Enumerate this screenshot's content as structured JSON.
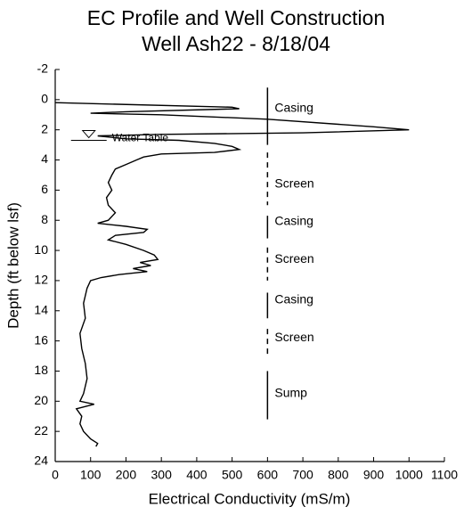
{
  "chart_data": {
    "type": "profile",
    "title": "EC Profile and Well Construction",
    "subtitle": "Well Ash22 - 8/18/04",
    "x_label": "Electrical Conductivity (mS/m)",
    "y_label": "Depth (ft below lsf)",
    "xlim": [
      0,
      1100
    ],
    "xticks": [
      0,
      100,
      200,
      300,
      400,
      500,
      600,
      700,
      800,
      900,
      1000,
      1100
    ],
    "ylim": [
      -2,
      24
    ],
    "yticks": [
      -2,
      0,
      2,
      4,
      6,
      8,
      10,
      12,
      14,
      16,
      18,
      20,
      22,
      24
    ],
    "y_inverted": true,
    "color": "#000000",
    "x": [
      0,
      500,
      520,
      200,
      100,
      300,
      600,
      900,
      1000,
      700,
      300,
      120,
      200,
      350,
      450,
      500,
      520,
      450,
      300,
      250,
      230,
      200,
      170,
      160,
      150,
      160,
      145,
      150,
      170,
      150,
      120,
      200,
      260,
      250,
      170,
      150,
      200,
      250,
      280,
      290,
      240,
      270,
      220,
      260,
      180,
      130,
      100,
      90,
      80,
      85,
      70,
      75,
      85,
      90,
      80,
      70,
      110,
      60,
      75,
      70,
      80,
      100,
      120,
      115
    ],
    "values": [
      0.2,
      0.5,
      0.6,
      0.8,
      0.9,
      1.0,
      1.3,
      1.8,
      2.0,
      2.2,
      2.3,
      2.4,
      2.6,
      2.7,
      2.9,
      3.1,
      3.3,
      3.5,
      3.6,
      3.8,
      4.0,
      4.3,
      4.6,
      5.0,
      5.5,
      6.0,
      6.5,
      7.0,
      7.5,
      8.0,
      8.2,
      8.4,
      8.6,
      8.8,
      9.0,
      9.3,
      9.6,
      10.0,
      10.3,
      10.6,
      10.8,
      11.0,
      11.2,
      11.4,
      11.6,
      11.8,
      12.0,
      12.5,
      13.5,
      14.5,
      15.5,
      16.5,
      17.5,
      18.5,
      19.5,
      20.0,
      20.2,
      20.5,
      21.0,
      21.5,
      22.0,
      22.5,
      22.8,
      23.0
    ],
    "well_x": 600,
    "well": [
      {
        "label": "Casing",
        "top": -0.8,
        "bottom": 3.0,
        "label_y": 0.6,
        "style": "solid"
      },
      {
        "label": "Screen",
        "top": 3.5,
        "bottom": 7.0,
        "label_y": 5.6,
        "style": "dashed"
      },
      {
        "label": "Casing",
        "top": 7.7,
        "bottom": 9.2,
        "label_y": 8.1,
        "style": "solid"
      },
      {
        "label": "Screen",
        "top": 9.8,
        "bottom": 12.0,
        "label_y": 10.6,
        "style": "dashed"
      },
      {
        "label": "Casing",
        "top": 12.8,
        "bottom": 14.5,
        "label_y": 13.3,
        "style": "solid"
      },
      {
        "label": "Screen",
        "top": 15.2,
        "bottom": 17.0,
        "label_y": 15.8,
        "style": "dashed"
      },
      {
        "label": "Sump",
        "top": 18.0,
        "bottom": 21.2,
        "label_y": 19.5,
        "style": "solid"
      }
    ],
    "annotations": [
      {
        "text": "Water Table",
        "x": 95,
        "y": 2.7
      }
    ]
  }
}
